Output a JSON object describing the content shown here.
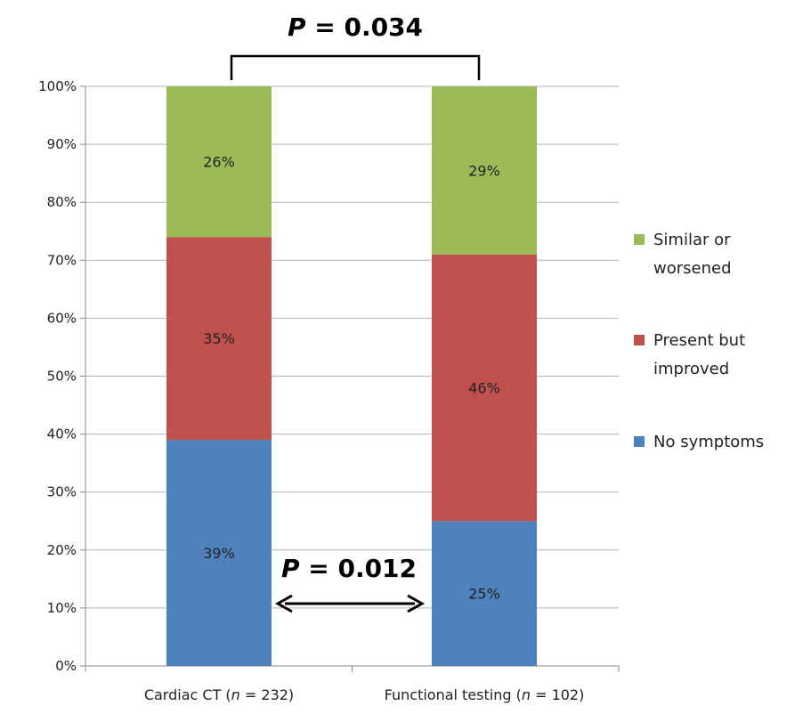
{
  "chart_data": {
    "type": "bar",
    "stacked": true,
    "categories": [
      "Cardiac CT",
      "Functional testing"
    ],
    "category_labels": [
      {
        "prefix": "Cardiac CT (",
        "n_symbol": "n",
        "suffix": " = 232)"
      },
      {
        "prefix": "Functional testing (",
        "n_symbol": "n",
        "suffix": " = 102)"
      }
    ],
    "series": [
      {
        "name": "No symptoms",
        "values": [
          39,
          25
        ],
        "labels": [
          "39%",
          "25%"
        ],
        "color": "#4f81bd"
      },
      {
        "name": "Present but improved",
        "values": [
          35,
          46
        ],
        "labels": [
          "35%",
          "46%"
        ],
        "color": "#c0504d"
      },
      {
        "name": "Similar or worsened",
        "values": [
          26,
          29
        ],
        "labels": [
          "26%",
          "29%"
        ],
        "color": "#9bbb59"
      }
    ],
    "legend_lines": [
      {
        "series": "Similar or worsened",
        "lines": [
          "Similar or",
          "worsened"
        ]
      },
      {
        "series": "Present but improved",
        "lines": [
          "Present but",
          "improved"
        ]
      },
      {
        "series": "No symptoms",
        "lines": [
          "No symptoms"
        ]
      }
    ],
    "ylim": [
      0,
      100
    ],
    "yticks": [
      0,
      10,
      20,
      30,
      40,
      50,
      60,
      70,
      80,
      90,
      100
    ],
    "ytick_labels": [
      "0%",
      "10%",
      "20%",
      "30%",
      "40%",
      "50%",
      "60%",
      "70%",
      "80%",
      "90%",
      "100%"
    ],
    "grid": true,
    "legend_position": "right",
    "annotations": [
      {
        "type": "bracket",
        "p_symbol": "P",
        "text": " = 0.034",
        "between": [
          "Cardiac CT",
          "Functional testing"
        ],
        "at": "top"
      },
      {
        "type": "double-arrow",
        "p_symbol": "P",
        "text": " = 0.012",
        "between": [
          "Cardiac CT",
          "Functional testing"
        ],
        "series": "No symptoms"
      }
    ]
  }
}
